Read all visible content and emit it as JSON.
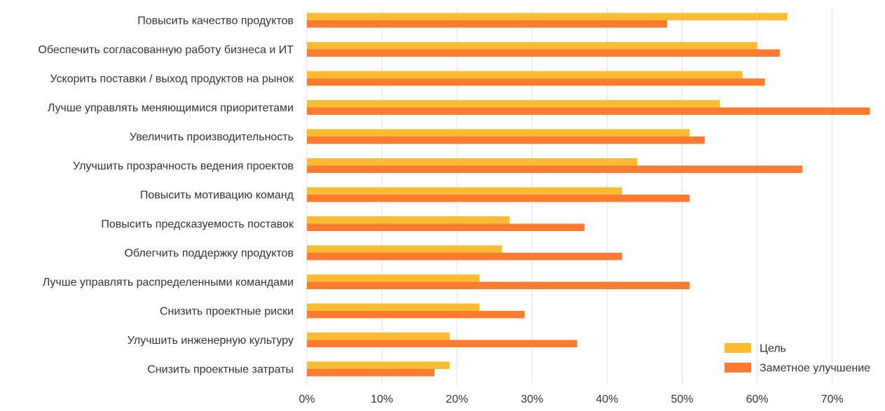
{
  "chart_data": {
    "type": "bar",
    "orientation": "horizontal",
    "title": "",
    "xlabel": "",
    "ylabel": "",
    "xlim": [
      0,
      75
    ],
    "x_ticks": [
      "0%",
      "10%",
      "20%",
      "30%",
      "40%",
      "50%",
      "60%",
      "70%"
    ],
    "grid": "vertical",
    "legend_position": "bottom-right",
    "categories": [
      "Повысить качество продуктов",
      "Обеспечить согласованную работу бизнеса и ИТ",
      "Ускорить поставки / выход продуктов на рынок",
      "Лучше управлять меняющимися приоритетами",
      "Увеличить производительность",
      "Улучшить прозрачность ведения проектов",
      "Повысить мотивацию команд",
      "Повысить предсказуемость поставок",
      "Облегчить поддержку продуктов",
      "Лучше управлять распределенными командами",
      "Снизить проектные риски",
      "Улучшить инженерную культуру",
      "Снизить проектные затраты"
    ],
    "series": [
      {
        "name": "Цель",
        "color": "#FBBC33",
        "values": [
          64,
          60,
          58,
          55,
          51,
          44,
          42,
          27,
          26,
          23,
          23,
          19,
          19
        ]
      },
      {
        "name": "Заметное улучшение",
        "color": "#FF7B30",
        "values": [
          48,
          63,
          61,
          75,
          53,
          66,
          51,
          37,
          42,
          51,
          29,
          36,
          17
        ]
      }
    ]
  }
}
